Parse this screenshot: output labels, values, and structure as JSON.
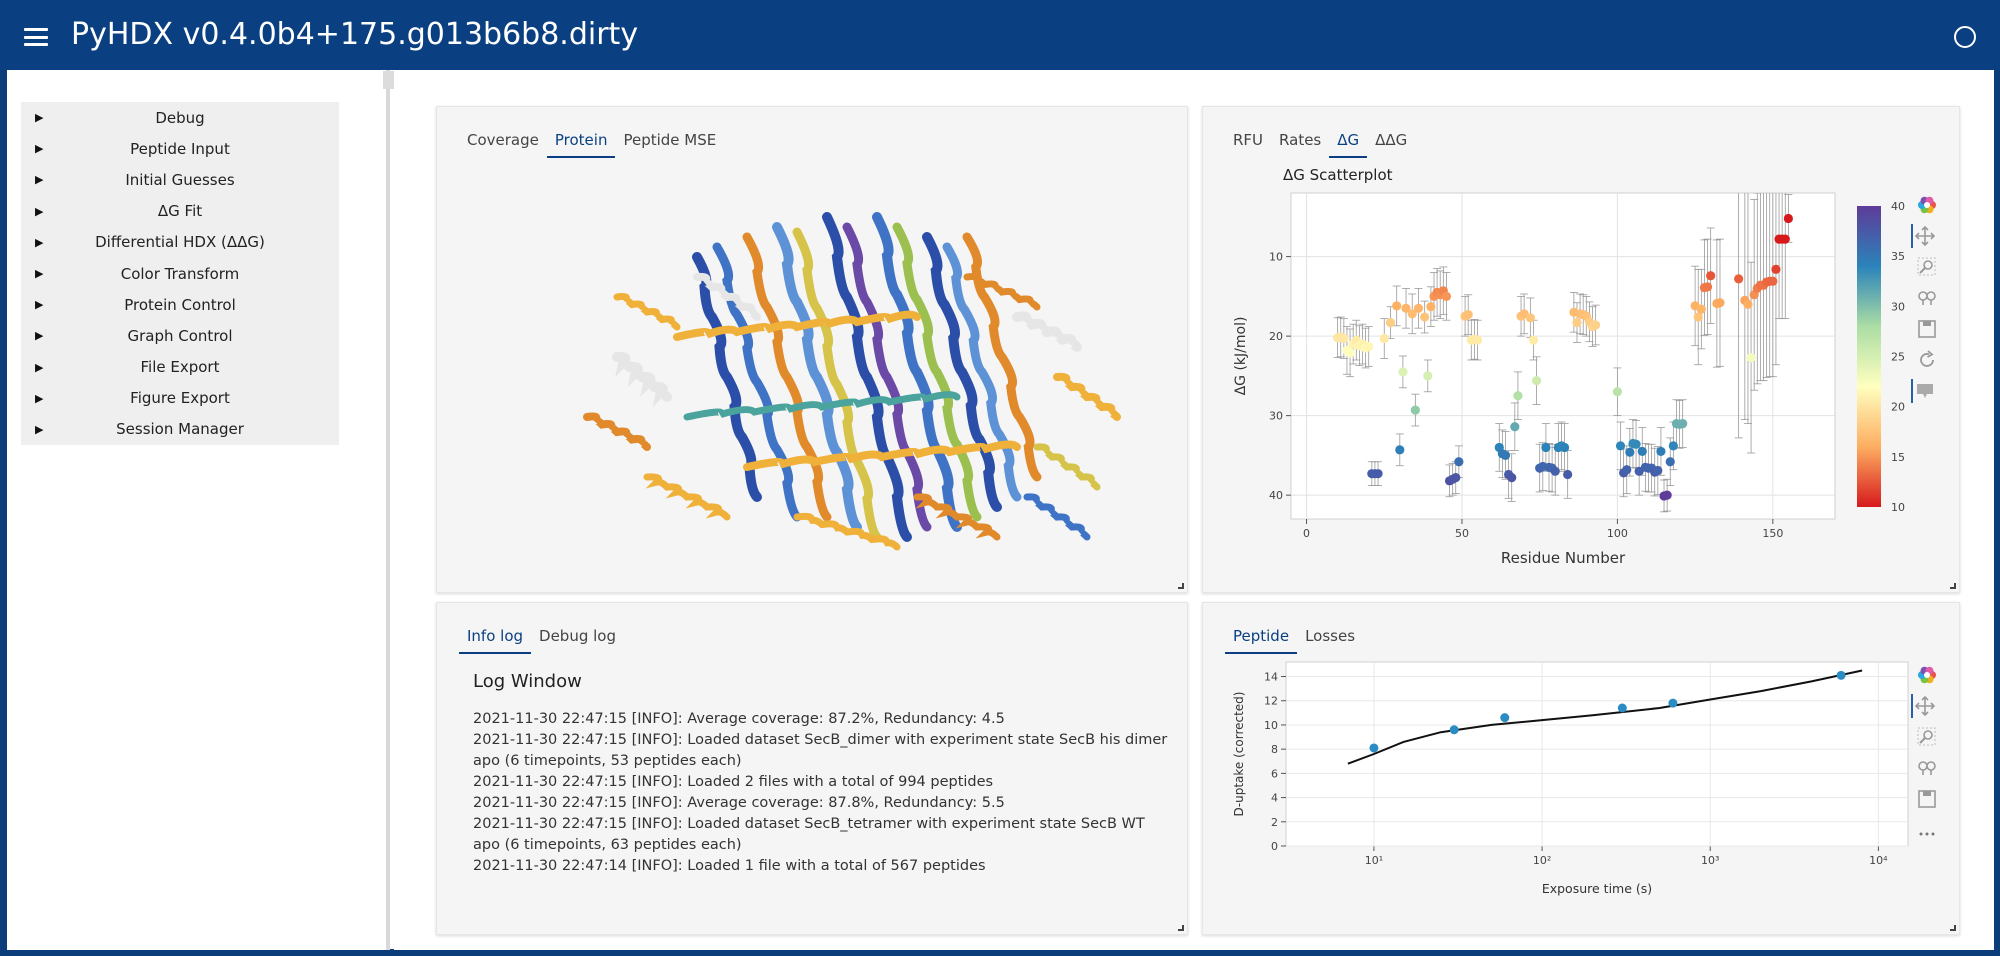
{
  "app": {
    "title": "PyHDX v0.4.0b4+175.g013b6b8.dirty"
  },
  "sidebar": {
    "items": [
      {
        "label": "Debug"
      },
      {
        "label": "Peptide Input"
      },
      {
        "label": "Initial Guesses"
      },
      {
        "label": "ΔG Fit"
      },
      {
        "label": "Differential HDX (ΔΔG)"
      },
      {
        "label": "Color Transform"
      },
      {
        "label": "Protein Control"
      },
      {
        "label": "Graph Control"
      },
      {
        "label": "File Export"
      },
      {
        "label": "Figure Export"
      },
      {
        "label": "Session Manager"
      }
    ]
  },
  "protein_panel": {
    "tabs": [
      "Coverage",
      "Protein",
      "Peptide MSE"
    ],
    "active_tab": "Protein"
  },
  "dg_panel": {
    "tabs": [
      "RFU",
      "Rates",
      "ΔG",
      "ΔΔG"
    ],
    "active_tab": "ΔG"
  },
  "log_panel": {
    "tabs": [
      "Info log",
      "Debug log"
    ],
    "active_tab": "Info log",
    "title": "Log Window",
    "lines": [
      "2021-11-30 22:47:15 [INFO]: Average coverage: 87.2%, Redundancy: 4.5",
      "2021-11-30 22:47:15 [INFO]: Loaded dataset SecB_dimer with experiment state SecB his dimer apo (6 timepoints, 53 peptides each)",
      "2021-11-30 22:47:15 [INFO]: Loaded 2 files with a total of 994 peptides",
      "2021-11-30 22:47:15 [INFO]: Average coverage: 87.8%, Redundancy: 5.5",
      "2021-11-30 22:47:15 [INFO]: Loaded dataset SecB_tetramer with experiment state SecB WT apo (6 timepoints, 63 peptides each)",
      "2021-11-30 22:47:14 [INFO]: Loaded 1 file with a total of 567 peptides"
    ]
  },
  "peptide_panel": {
    "tabs": [
      "Peptide",
      "Losses"
    ],
    "active_tab": "Peptide"
  },
  "toolbar_icons": [
    "bokeh-logo-icon",
    "pan-icon",
    "box-zoom-icon",
    "wheel-zoom-icon",
    "save-icon",
    "reset-icon",
    "hover-icon"
  ],
  "chart_data": [
    {
      "type": "scatter",
      "title": "ΔG Scatterplot",
      "xlabel": "Residue Number",
      "ylabel": "ΔG (kJ/mol)",
      "xlim": [
        -5,
        170
      ],
      "ylim": [
        43,
        2
      ],
      "y_inverted": true,
      "xticks": [
        0,
        50,
        100,
        150
      ],
      "yticks": [
        10,
        20,
        30,
        40
      ],
      "grid": true,
      "colorbar": {
        "min": 10,
        "max": 40,
        "ticks": [
          10,
          15,
          20,
          25,
          30,
          35,
          40
        ],
        "colors": [
          "#d7191c",
          "#fdae61",
          "#ffffbf",
          "#abdda4",
          "#2b83ba",
          "#5e3c99"
        ]
      },
      "points": [
        {
          "x": 10,
          "y": 20.2,
          "e": 2.5
        },
        {
          "x": 11,
          "y": 20.1,
          "e": 2.5
        },
        {
          "x": 12,
          "y": 20.3,
          "e": 2.5
        },
        {
          "x": 13,
          "y": 21.8,
          "e": 3
        },
        {
          "x": 14,
          "y": 22.1,
          "e": 3
        },
        {
          "x": 15,
          "y": 21,
          "e": 2.5
        },
        {
          "x": 16,
          "y": 20.5,
          "e": 2.5
        },
        {
          "x": 17,
          "y": 21.2,
          "e": 2.5
        },
        {
          "x": 18,
          "y": 21,
          "e": 2.5
        },
        {
          "x": 19,
          "y": 21.5,
          "e": 2.5
        },
        {
          "x": 20,
          "y": 21.3,
          "e": 2.5
        },
        {
          "x": 21,
          "y": 37.3,
          "e": 1.5
        },
        {
          "x": 22,
          "y": 37.3,
          "e": 1.5
        },
        {
          "x": 23,
          "y": 37.3,
          "e": 1.5
        },
        {
          "x": 25,
          "y": 20.3,
          "e": 2.5
        },
        {
          "x": 27,
          "y": 18.3,
          "e": 2
        },
        {
          "x": 29,
          "y": 16.2,
          "e": 2.5
        },
        {
          "x": 30,
          "y": 34.3,
          "e": 2
        },
        {
          "x": 31,
          "y": 24.5,
          "e": 2
        },
        {
          "x": 32,
          "y": 16.5,
          "e": 2.5
        },
        {
          "x": 34,
          "y": 17.2,
          "e": 2.5
        },
        {
          "x": 35,
          "y": 29.3,
          "e": 2
        },
        {
          "x": 36,
          "y": 16.5,
          "e": 2.5
        },
        {
          "x": 38,
          "y": 17.6,
          "e": 2
        },
        {
          "x": 39,
          "y": 25,
          "e": 2
        },
        {
          "x": 40,
          "y": 16.3,
          "e": 2.5
        },
        {
          "x": 41,
          "y": 15,
          "e": 3
        },
        {
          "x": 42,
          "y": 14.5,
          "e": 3
        },
        {
          "x": 43,
          "y": 14.8,
          "e": 3
        },
        {
          "x": 44,
          "y": 14.3,
          "e": 3
        },
        {
          "x": 45,
          "y": 15,
          "e": 3
        },
        {
          "x": 46,
          "y": 38.2,
          "e": 2
        },
        {
          "x": 47,
          "y": 38,
          "e": 2
        },
        {
          "x": 48,
          "y": 37.8,
          "e": 2
        },
        {
          "x": 49,
          "y": 35.8,
          "e": 2
        },
        {
          "x": 51,
          "y": 17.5,
          "e": 2.5
        },
        {
          "x": 52,
          "y": 17.3,
          "e": 2.5
        },
        {
          "x": 53,
          "y": 20.5,
          "e": 2.5
        },
        {
          "x": 54,
          "y": 20.4,
          "e": 2.5
        },
        {
          "x": 55,
          "y": 20.5,
          "e": 2.5
        },
        {
          "x": 62,
          "y": 34,
          "e": 3
        },
        {
          "x": 63,
          "y": 34.8,
          "e": 3
        },
        {
          "x": 64,
          "y": 35,
          "e": 3
        },
        {
          "x": 65,
          "y": 37.4,
          "e": 3
        },
        {
          "x": 66,
          "y": 37.8,
          "e": 3
        },
        {
          "x": 67,
          "y": 31.4,
          "e": 3
        },
        {
          "x": 68,
          "y": 27.5,
          "e": 3
        },
        {
          "x": 69,
          "y": 17.5,
          "e": 2.5
        },
        {
          "x": 70,
          "y": 17.2,
          "e": 2.5
        },
        {
          "x": 72,
          "y": 17.7,
          "e": 2.5
        },
        {
          "x": 73,
          "y": 20.5,
          "e": 2.5
        },
        {
          "x": 74,
          "y": 25.6,
          "e": 3
        },
        {
          "x": 75,
          "y": 36.6,
          "e": 3
        },
        {
          "x": 76,
          "y": 36.4,
          "e": 3
        },
        {
          "x": 77,
          "y": 34,
          "e": 3
        },
        {
          "x": 78,
          "y": 36.5,
          "e": 3
        },
        {
          "x": 79,
          "y": 36.6,
          "e": 3
        },
        {
          "x": 80,
          "y": 37,
          "e": 3
        },
        {
          "x": 81,
          "y": 34,
          "e": 3
        },
        {
          "x": 82,
          "y": 33.8,
          "e": 3
        },
        {
          "x": 83,
          "y": 34,
          "e": 3
        },
        {
          "x": 84,
          "y": 37.4,
          "e": 3
        },
        {
          "x": 86,
          "y": 17,
          "e": 2.5
        },
        {
          "x": 87,
          "y": 18.3,
          "e": 2.5
        },
        {
          "x": 88,
          "y": 17.2,
          "e": 2.5
        },
        {
          "x": 89,
          "y": 17.3,
          "e": 2.5
        },
        {
          "x": 90,
          "y": 17.5,
          "e": 2.5
        },
        {
          "x": 91,
          "y": 18.2,
          "e": 2.5
        },
        {
          "x": 92,
          "y": 18.8,
          "e": 2.5
        },
        {
          "x": 93,
          "y": 18.6,
          "e": 2.5
        },
        {
          "x": 100,
          "y": 27,
          "e": 3
        },
        {
          "x": 101,
          "y": 33.8,
          "e": 3
        },
        {
          "x": 102,
          "y": 37.2,
          "e": 3
        },
        {
          "x": 103,
          "y": 36.8,
          "e": 3
        },
        {
          "x": 104,
          "y": 34.6,
          "e": 3
        },
        {
          "x": 105,
          "y": 33.5,
          "e": 3
        },
        {
          "x": 106,
          "y": 33.6,
          "e": 3
        },
        {
          "x": 107,
          "y": 37,
          "e": 3
        },
        {
          "x": 108,
          "y": 34.5,
          "e": 3
        },
        {
          "x": 109,
          "y": 36.5,
          "e": 3
        },
        {
          "x": 110,
          "y": 36.6,
          "e": 3
        },
        {
          "x": 111,
          "y": 36.6,
          "e": 3
        },
        {
          "x": 112,
          "y": 37.1,
          "e": 3
        },
        {
          "x": 113,
          "y": 36.9,
          "e": 3
        },
        {
          "x": 114,
          "y": 34.5,
          "e": 3
        },
        {
          "x": 115,
          "y": 40.1,
          "e": 2
        },
        {
          "x": 116,
          "y": 40,
          "e": 2
        },
        {
          "x": 117,
          "y": 35.8,
          "e": 3
        },
        {
          "x": 118,
          "y": 33.8,
          "e": 3
        },
        {
          "x": 119,
          "y": 31,
          "e": 3
        },
        {
          "x": 120,
          "y": 31.1,
          "e": 3
        },
        {
          "x": 121,
          "y": 31,
          "e": 3
        },
        {
          "x": 125,
          "y": 16.2,
          "e": 5
        },
        {
          "x": 126,
          "y": 17.6,
          "e": 6
        },
        {
          "x": 127,
          "y": 16.6,
          "e": 5
        },
        {
          "x": 128,
          "y": 13.9,
          "e": 6
        },
        {
          "x": 129,
          "y": 13.8,
          "e": 6
        },
        {
          "x": 130,
          "y": 12.4,
          "e": 6
        },
        {
          "x": 132,
          "y": 15.9,
          "e": 8
        },
        {
          "x": 133,
          "y": 15.8,
          "e": 8
        },
        {
          "x": 139,
          "y": 12.8,
          "e": 20
        },
        {
          "x": 141,
          "y": 15.5,
          "e": 15
        },
        {
          "x": 142,
          "y": 16,
          "e": 15
        },
        {
          "x": 143,
          "y": 22.7,
          "e": 12
        },
        {
          "x": 144,
          "y": 14.8,
          "e": 12
        },
        {
          "x": 145,
          "y": 14,
          "e": 12
        },
        {
          "x": 146,
          "y": 13.6,
          "e": 12
        },
        {
          "x": 147,
          "y": 13.6,
          "e": 12
        },
        {
          "x": 148,
          "y": 13.2,
          "e": 12
        },
        {
          "x": 149,
          "y": 13.1,
          "e": 12
        },
        {
          "x": 150,
          "y": 13.1,
          "e": 12
        },
        {
          "x": 151,
          "y": 11.6,
          "e": 12
        },
        {
          "x": 152,
          "y": 7.8,
          "e": 10
        },
        {
          "x": 153,
          "y": 7.8,
          "e": 10
        },
        {
          "x": 154,
          "y": 7.8,
          "e": 10
        },
        {
          "x": 155,
          "y": 5.2,
          "e": 3
        }
      ]
    },
    {
      "type": "scatter",
      "title": "",
      "xlabel": "Exposure time (s)",
      "ylabel": "D-uptake (corrected)",
      "x_scale": "log",
      "xlim": [
        3,
        15000
      ],
      "ylim": [
        0,
        15.2
      ],
      "xticks_labels": [
        "10¹",
        "10²",
        "10³",
        "10⁴"
      ],
      "xticks": [
        10,
        100,
        1000,
        10000
      ],
      "yticks": [
        0,
        2,
        4,
        6,
        8,
        10,
        12,
        14
      ],
      "points": [
        {
          "x": 10,
          "y": 8.1
        },
        {
          "x": 30,
          "y": 9.6
        },
        {
          "x": 60,
          "y": 10.6
        },
        {
          "x": 300,
          "y": 11.4
        },
        {
          "x": 600,
          "y": 11.8
        },
        {
          "x": 6000,
          "y": 14.1
        }
      ],
      "fit_line": [
        {
          "x": 7,
          "y": 6.8
        },
        {
          "x": 10,
          "y": 7.6
        },
        {
          "x": 15,
          "y": 8.6
        },
        {
          "x": 25,
          "y": 9.4
        },
        {
          "x": 50,
          "y": 10
        },
        {
          "x": 100,
          "y": 10.4
        },
        {
          "x": 200,
          "y": 10.8
        },
        {
          "x": 500,
          "y": 11.4
        },
        {
          "x": 1000,
          "y": 12.1
        },
        {
          "x": 2000,
          "y": 12.8
        },
        {
          "x": 4000,
          "y": 13.6
        },
        {
          "x": 8000,
          "y": 14.5
        }
      ]
    }
  ]
}
